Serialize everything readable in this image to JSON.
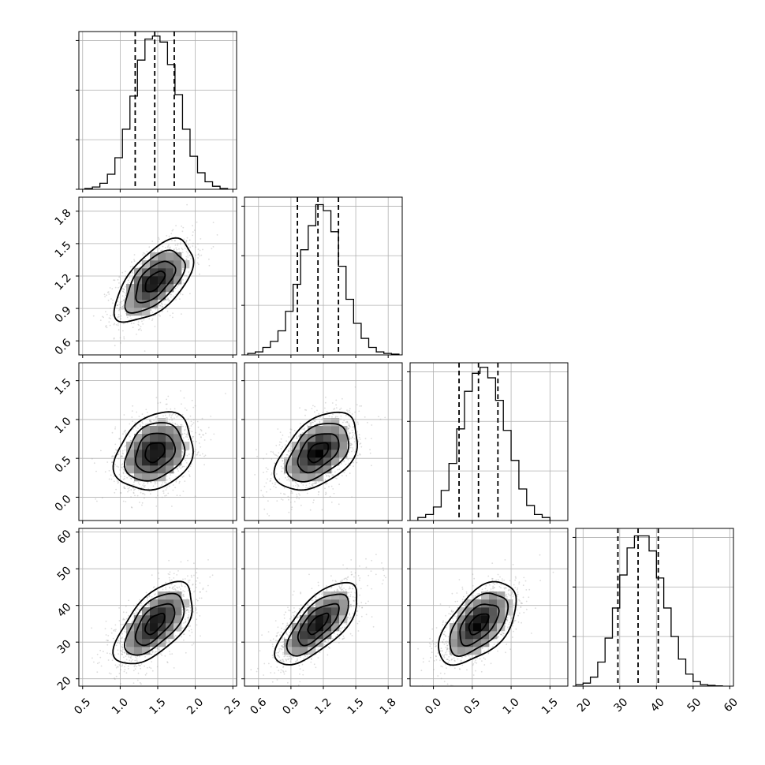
{
  "chart_data": {
    "type": "corner",
    "params": [
      {
        "range": [
          0.45,
          2.55
        ],
        "ticks": [
          0.5,
          1.0,
          1.5,
          2.0,
          2.5
        ],
        "tick_labels": [
          "0.5",
          "1.0",
          "1.5",
          "2.0",
          "2.5"
        ],
        "quantiles": [
          1.2,
          1.46,
          1.72
        ],
        "hist_edges": [
          0.53,
          0.63,
          0.73,
          0.83,
          0.93,
          1.03,
          1.13,
          1.23,
          1.33,
          1.43,
          1.53,
          1.63,
          1.73,
          1.83,
          1.93,
          2.03,
          2.13,
          2.23,
          2.33,
          2.43
        ],
        "hist_counts": [
          0.5,
          1.5,
          4,
          10,
          21,
          40,
          62,
          86,
          100,
          102,
          98,
          83,
          63,
          40,
          22,
          11,
          5,
          2,
          0.5
        ]
      },
      {
        "range": [
          0.47,
          1.93
        ],
        "ticks": [
          0.6,
          0.9,
          1.2,
          1.5,
          1.8
        ],
        "tick_labels": [
          "0.6",
          "0.9",
          "1.2",
          "1.5",
          "1.8"
        ],
        "quantiles": [
          0.96,
          1.15,
          1.34
        ],
        "hist_edges": [
          0.5,
          0.57,
          0.64,
          0.71,
          0.78,
          0.85,
          0.92,
          0.99,
          1.06,
          1.13,
          1.2,
          1.27,
          1.34,
          1.41,
          1.48,
          1.55,
          1.62,
          1.69,
          1.76,
          1.83,
          1.9
        ],
        "hist_counts": [
          1,
          2,
          5,
          9,
          16,
          29,
          47,
          70,
          86,
          100,
          96,
          82,
          59,
          37,
          21,
          11,
          5,
          2,
          1,
          0.5
        ]
      },
      {
        "range": [
          -0.3,
          1.73
        ],
        "ticks": [
          0.0,
          0.5,
          1.0,
          1.5
        ],
        "tick_labels": [
          "0.0",
          "0.5",
          "1.0",
          "1.5"
        ],
        "quantiles": [
          0.33,
          0.58,
          0.83
        ],
        "hist_edges": [
          -0.2,
          -0.1,
          0.0,
          0.1,
          0.2,
          0.3,
          0.4,
          0.5,
          0.6,
          0.7,
          0.8,
          0.9,
          1.0,
          1.1,
          1.2,
          1.3,
          1.4,
          1.5
        ],
        "hist_counts": [
          2,
          4,
          9,
          20,
          38,
          61,
          86,
          98,
          102,
          95,
          80,
          60,
          40,
          21,
          10,
          4,
          2
        ]
      },
      {
        "range": [
          18,
          61
        ],
        "ticks": [
          20,
          30,
          40,
          50,
          60
        ],
        "tick_labels": [
          "20",
          "30",
          "40",
          "50",
          "60"
        ],
        "quantiles": [
          29.5,
          35.0,
          40.5
        ],
        "hist_edges": [
          18,
          20,
          22,
          24,
          26,
          28,
          30,
          32,
          34,
          36,
          38,
          40,
          42,
          44,
          46,
          48,
          50,
          52,
          54,
          56,
          58
        ],
        "hist_counts": [
          1,
          2,
          6,
          16,
          32,
          52,
          74,
          92,
          100,
          100,
          90,
          72,
          52,
          33,
          18,
          8,
          3,
          1,
          0.5,
          0.2
        ]
      }
    ],
    "hist_ylim": [
      0,
      105
    ],
    "hist_yticks": [
      0,
      33,
      66,
      99
    ],
    "pairs": [
      {
        "row": 1,
        "col": 0,
        "mean": [
          1.46,
          1.15
        ],
        "std": [
          0.26,
          0.19
        ],
        "rho": 0.6
      },
      {
        "row": 2,
        "col": 0,
        "mean": [
          1.46,
          0.58
        ],
        "std": [
          0.26,
          0.25
        ],
        "rho": 0.25
      },
      {
        "row": 2,
        "col": 1,
        "mean": [
          1.15,
          0.58
        ],
        "std": [
          0.19,
          0.25
        ],
        "rho": 0.45
      },
      {
        "row": 3,
        "col": 0,
        "mean": [
          1.46,
          35.0
        ],
        "std": [
          0.26,
          5.6
        ],
        "rho": 0.6
      },
      {
        "row": 3,
        "col": 1,
        "mean": [
          1.15,
          35.0
        ],
        "std": [
          0.19,
          5.6
        ],
        "rho": 0.7
      },
      {
        "row": 3,
        "col": 2,
        "mean": [
          0.58,
          35.0
        ],
        "std": [
          0.25,
          5.6
        ],
        "rho": 0.55
      }
    ],
    "contour_levels_sigma": [
      0.5,
      1.0,
      1.5,
      2.0
    ],
    "grid": true,
    "colors": {
      "line": "#000000",
      "scatter": "#9a9a9a",
      "grid": "#b0b0b0"
    }
  }
}
